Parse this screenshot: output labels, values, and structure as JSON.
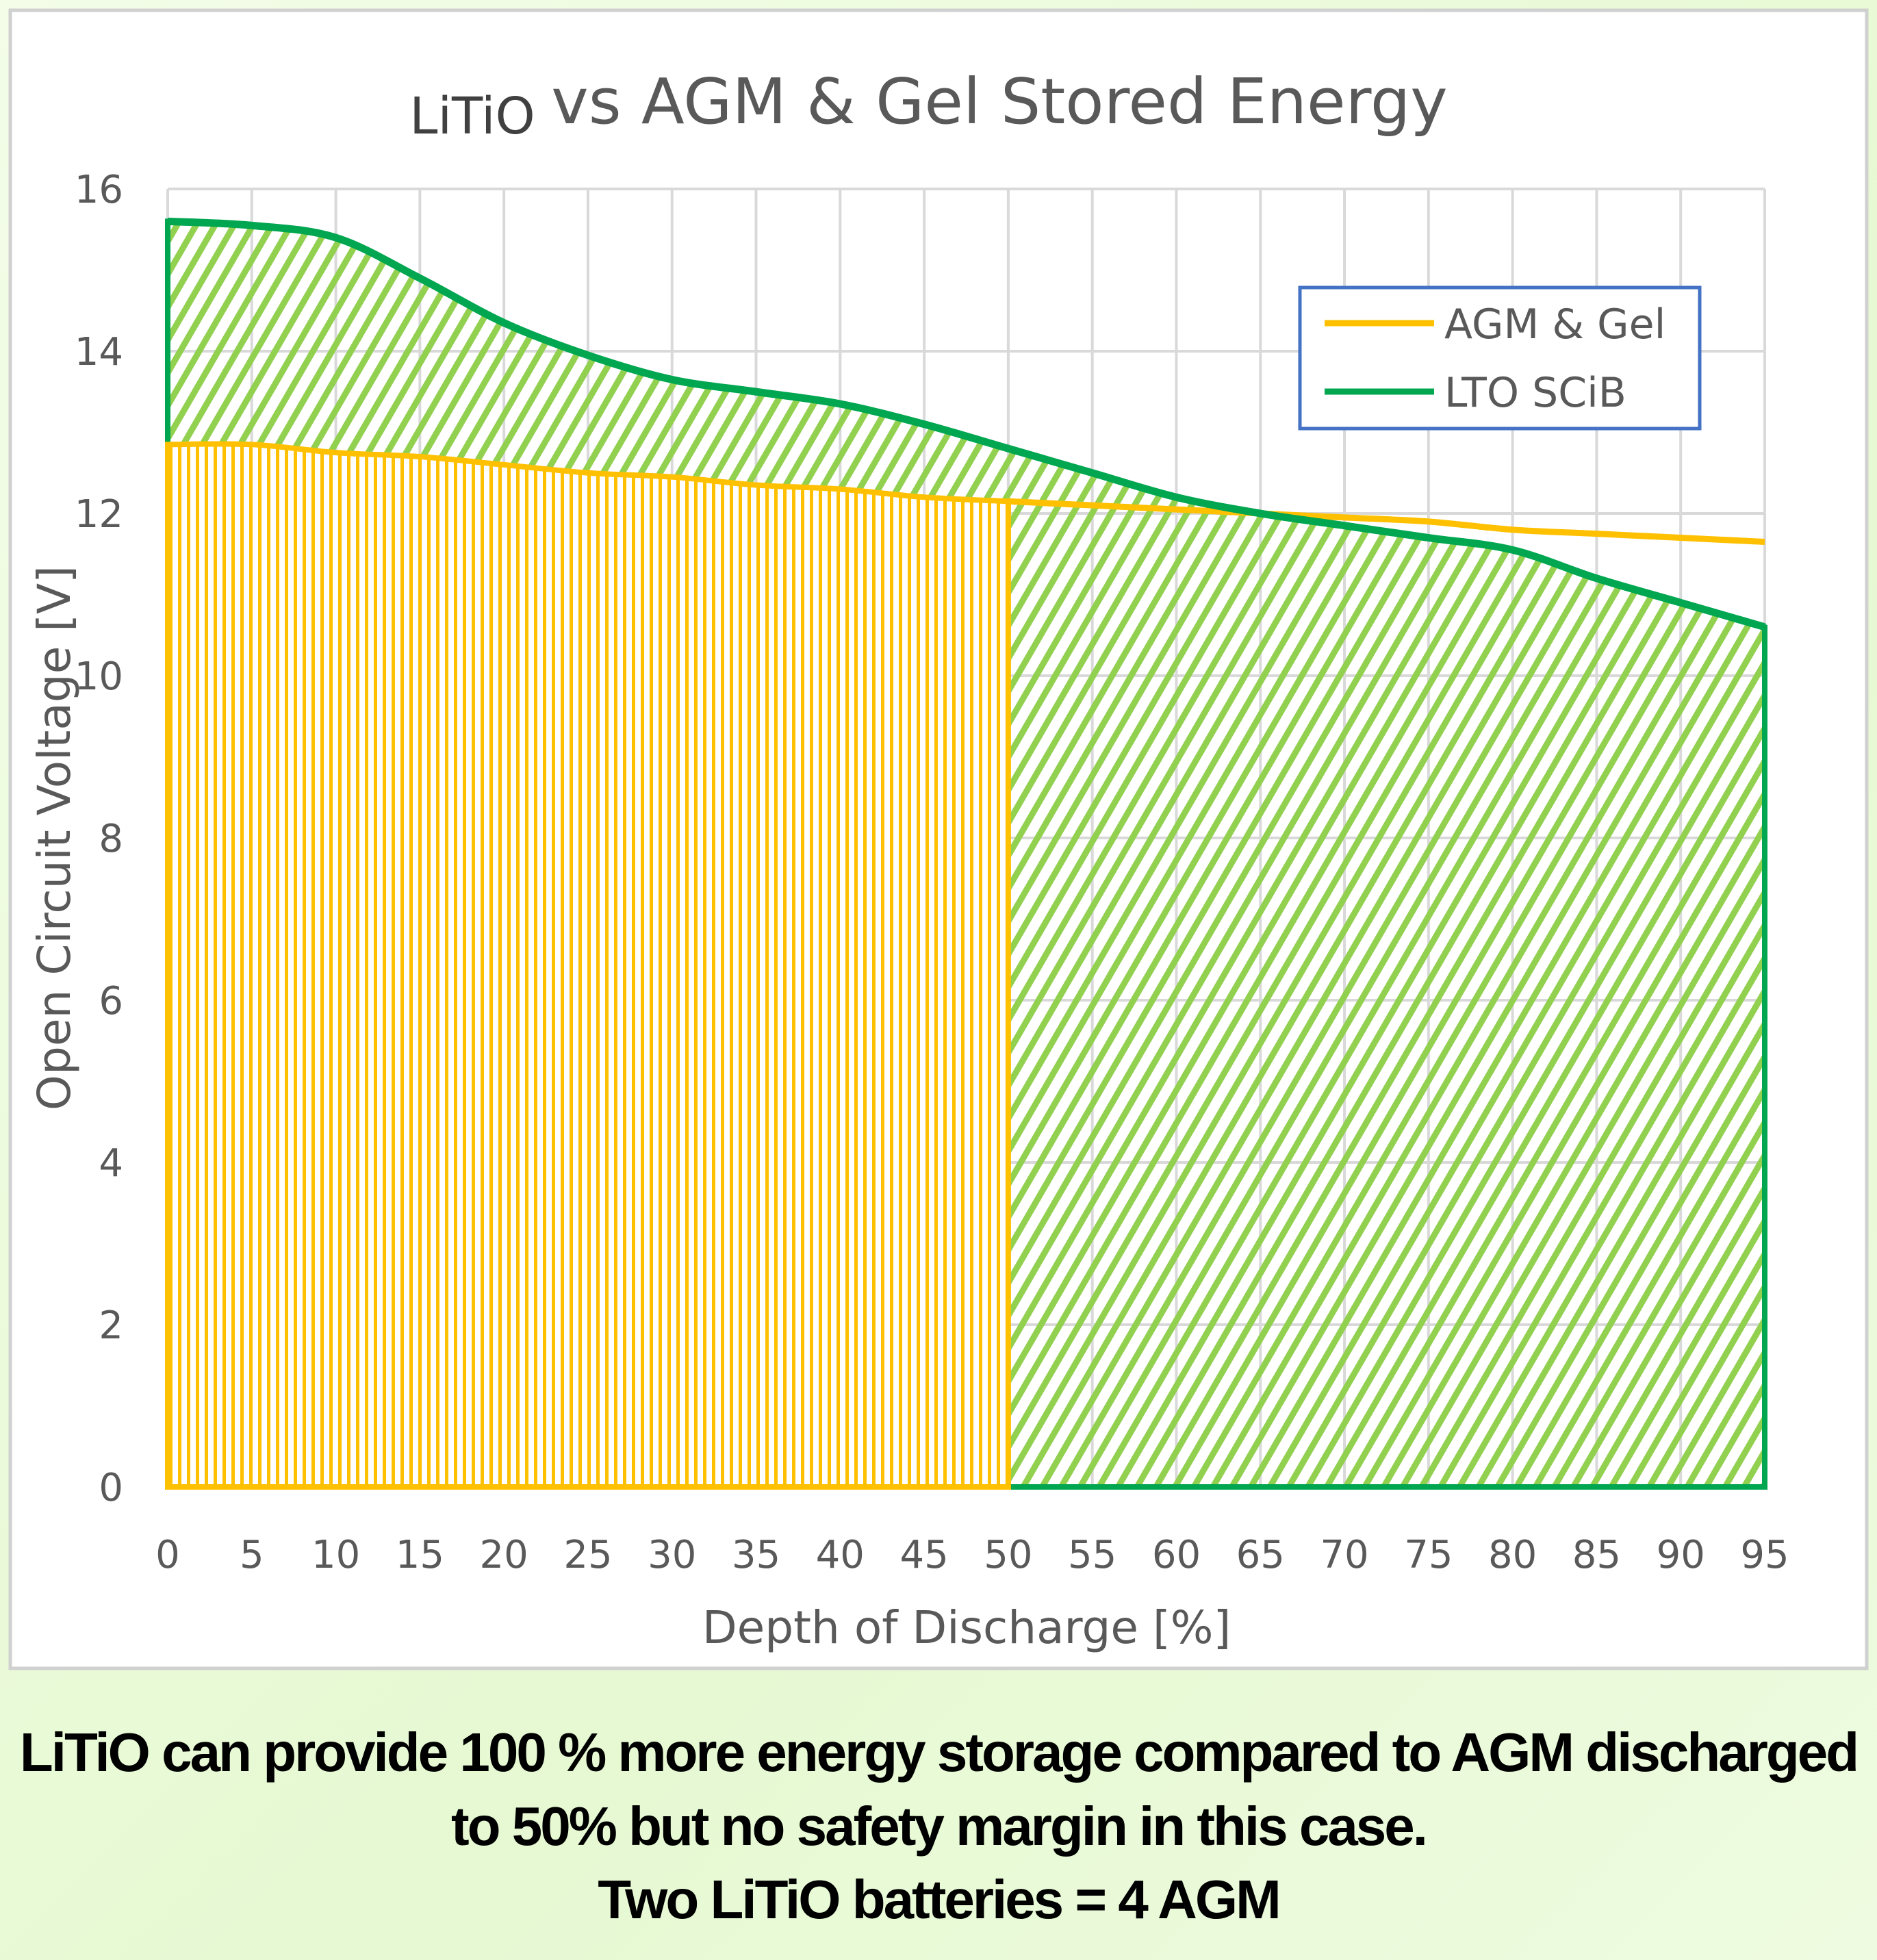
{
  "chart_data": {
    "type": "area",
    "title_prefix": "LiTiO",
    "title": "vs AGM & Gel Stored Energy",
    "xlabel": "Depth of Discharge [%]",
    "ylabel": "Open Circuit Voltage [V]",
    "x": [
      0,
      5,
      10,
      15,
      20,
      25,
      30,
      35,
      40,
      45,
      50,
      55,
      60,
      65,
      70,
      75,
      80,
      85,
      90,
      95
    ],
    "xlim": [
      0,
      95
    ],
    "ylim": [
      0,
      16
    ],
    "yticks": [
      0,
      2,
      4,
      6,
      8,
      10,
      12,
      14,
      16
    ],
    "grid": true,
    "legend_position": "top-right",
    "series": [
      {
        "name": "AGM & Gel",
        "color": "#ffc000",
        "fill": "vertical-hatch",
        "fill_to_x": 50,
        "values": [
          12.85,
          12.85,
          12.75,
          12.7,
          12.6,
          12.5,
          12.45,
          12.35,
          12.3,
          12.2,
          12.15,
          12.1,
          12.05,
          12.0,
          11.95,
          11.9,
          11.8,
          11.75,
          11.7,
          11.65
        ]
      },
      {
        "name": "LTO SCiB",
        "color": "#00a650",
        "fill": "diagonal-hatch",
        "fill_color": "#92d050",
        "fill_to_x": 95,
        "values": [
          15.6,
          15.55,
          15.4,
          14.9,
          14.35,
          13.95,
          13.65,
          13.5,
          13.35,
          13.1,
          12.8,
          12.5,
          12.2,
          12.0,
          11.85,
          11.7,
          11.55,
          11.2,
          10.9,
          10.6
        ]
      }
    ]
  },
  "caption": {
    "line1": "LiTiO can provide 100 % more energy storage compared to AGM discharged",
    "line2": "to 50% but no safety margin in this case.",
    "line3": "Two LiTiO batteries = 4 AGM"
  }
}
